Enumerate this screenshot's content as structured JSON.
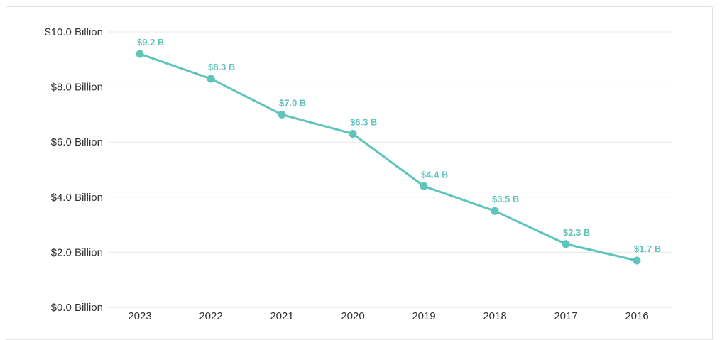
{
  "chart_data": {
    "type": "line",
    "title": "",
    "xlabel": "",
    "ylabel": "",
    "categories": [
      "2023",
      "2022",
      "2021",
      "2020",
      "2019",
      "2018",
      "2017",
      "2016"
    ],
    "values": [
      9.2,
      8.3,
      7.0,
      6.3,
      4.4,
      3.5,
      2.3,
      1.7
    ],
    "point_labels": [
      "$9.2 B",
      "$8.3 B",
      "$7.0 B",
      "$6.3 B",
      "$4.4 B",
      "$3.5 B",
      "$2.3 B",
      "$1.7 B"
    ],
    "y_ticks": [
      0,
      2,
      4,
      6,
      8,
      10
    ],
    "y_tick_labels": [
      "$0.0 Billion",
      "$2.0 Billion",
      "$4.0 Billion",
      "$6.0 Billion",
      "$8.0 Billion",
      "$10.0 Billion"
    ],
    "ylim": [
      0,
      10
    ],
    "grid": true,
    "legend": "none",
    "colors": {
      "line": "#5FC4BA",
      "marker": "#5FC4BA",
      "point_label": "#5FC4BA",
      "axis_text": "#333333",
      "gridline": "#e9e9e9",
      "zero_line": "#dcdcdc",
      "card_border": "#e2e2e2",
      "background": "#ffffff"
    }
  }
}
